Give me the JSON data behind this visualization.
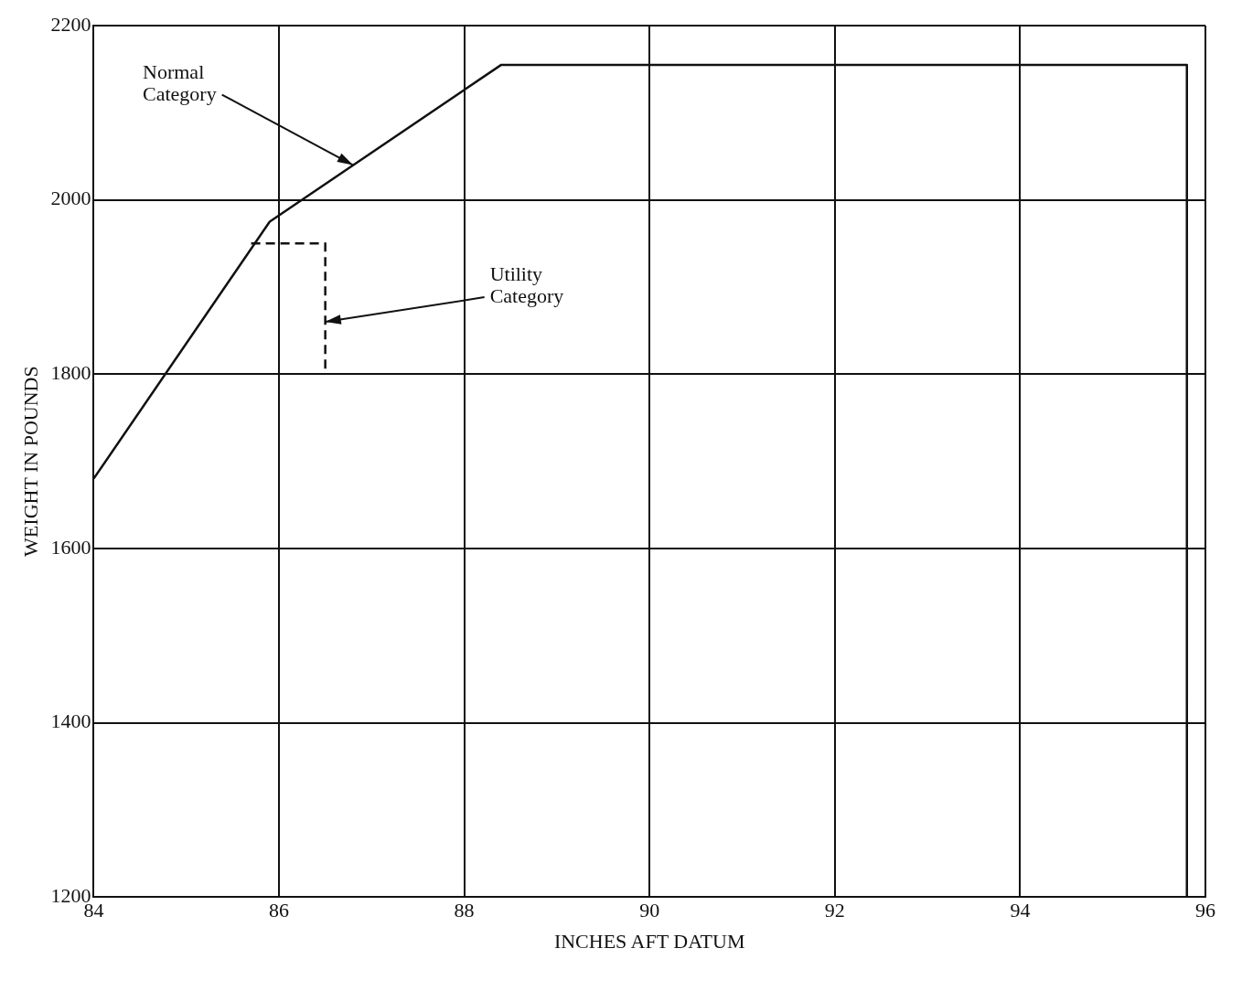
{
  "chart_data": {
    "type": "line",
    "xlabel": "INCHES AFT DATUM",
    "ylabel": "WEIGHT IN POUNDS",
    "xlim": [
      84,
      96
    ],
    "xticks": [
      84,
      86,
      88,
      90,
      92,
      94,
      96
    ],
    "ylim": [
      1200,
      2200
    ],
    "yticks": [
      1200,
      1400,
      1600,
      1800,
      2000,
      2200
    ],
    "grid": true,
    "legend": false,
    "marker": "none",
    "series": [
      {
        "color": "#111111",
        "x": [
          84,
          85.9,
          88.4,
          95.8,
          95.8
        ],
        "values": [
          1680,
          1975,
          2155,
          2155,
          1200
        ],
        "line_style": "solid"
      },
      {
        "color": "#111111",
        "x": [
          85.7,
          86.5,
          86.5
        ],
        "values": [
          1950,
          1950,
          1800
        ],
        "line_style": "dashed"
      }
    ],
    "annotations": [
      {
        "text": "Normal Category",
        "x": 86.8,
        "y": 2040
      },
      {
        "text": "Utility Category",
        "x": 86.5,
        "y": 1860
      }
    ]
  }
}
